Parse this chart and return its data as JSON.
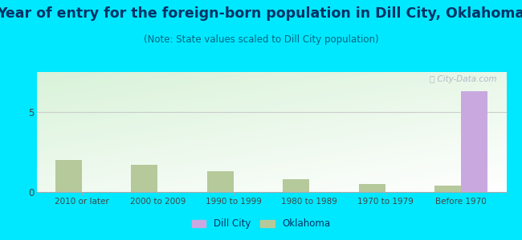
{
  "title": "Year of entry for the foreign-born population in Dill City, Oklahoma",
  "subtitle": "(Note: State values scaled to Dill City population)",
  "categories": [
    "2010 or later",
    "2000 to 2009",
    "1990 to 1999",
    "1980 to 1989",
    "1970 to 1979",
    "Before 1970"
  ],
  "dill_city_values": [
    0,
    0,
    0,
    0,
    0,
    6.3
  ],
  "oklahoma_values": [
    2.0,
    1.7,
    1.3,
    0.8,
    0.5,
    0.4
  ],
  "dill_city_color": "#c9a8e0",
  "oklahoma_color": "#b5c99a",
  "background_outer": "#00e8ff",
  "yticks": [
    0,
    5
  ],
  "ylim": [
    0,
    7.5
  ],
  "bar_width": 0.35,
  "title_fontsize": 12.5,
  "subtitle_fontsize": 8.5,
  "legend_labels": [
    "Dill City",
    "Oklahoma"
  ],
  "watermark": "ⓘ City-Data.com",
  "title_color": "#003366",
  "subtitle_color": "#006680",
  "tick_color": "#444444",
  "gridline_color": "#cccccc"
}
